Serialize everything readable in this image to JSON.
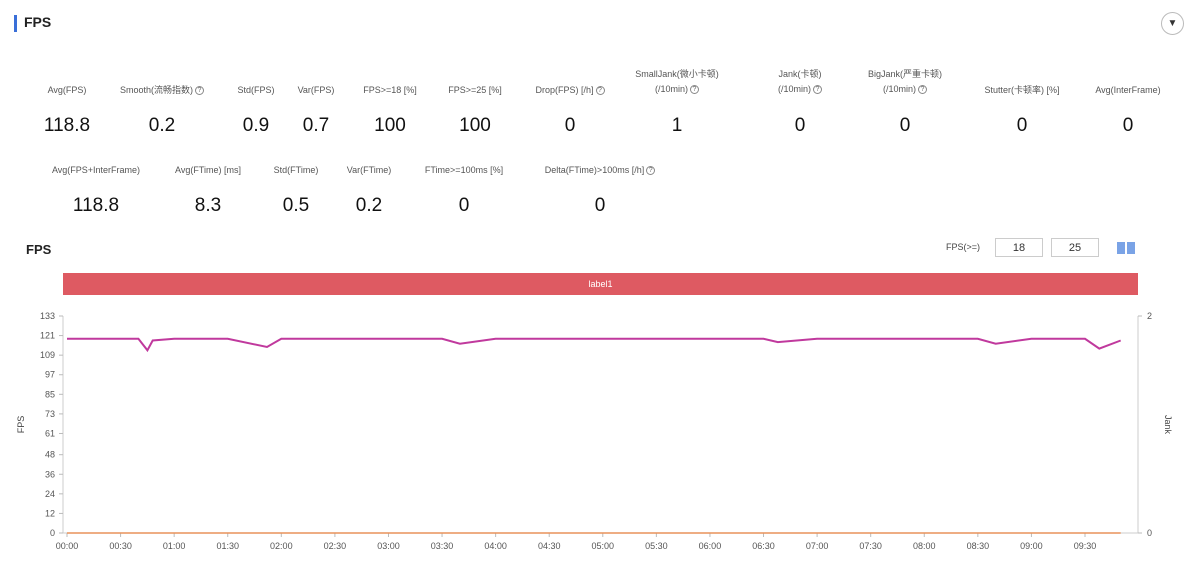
{
  "panel": {
    "title": "FPS",
    "collapse_icon": "chevron-down-icon"
  },
  "metrics_row1": [
    {
      "label": "Avg(FPS)",
      "help": false,
      "value": "118.8"
    },
    {
      "label": "Smooth(流畅指数)",
      "help": true,
      "value": "0.2"
    },
    {
      "label": "Std(FPS)",
      "help": false,
      "value": "0.9"
    },
    {
      "label": "Var(FPS)",
      "help": false,
      "value": "0.7"
    },
    {
      "label": "FPS>=18 [%]",
      "help": false,
      "value": "100"
    },
    {
      "label": "FPS>=25 [%]",
      "help": false,
      "value": "100"
    },
    {
      "label": "Drop(FPS) [/h]",
      "help": true,
      "value": "0"
    },
    {
      "label": "SmallJank(微小卡顿)",
      "label2": "(/10min)",
      "help": true,
      "value": "1"
    },
    {
      "label": "Jank(卡顿)",
      "label2": "(/10min)",
      "help": true,
      "value": "0"
    },
    {
      "label": "BigJank(严重卡顿)",
      "label2": "(/10min)",
      "help": true,
      "value": "0"
    },
    {
      "label": "Stutter(卡顿率) [%]",
      "help": false,
      "value": "0"
    },
    {
      "label": "Avg(InterFrame)",
      "help": false,
      "value": "0"
    }
  ],
  "metrics_row2": [
    {
      "label": "Avg(FPS+InterFrame)",
      "help": false,
      "value": "118.8"
    },
    {
      "label": "Avg(FTime) [ms]",
      "help": false,
      "value": "8.3"
    },
    {
      "label": "Std(FTime)",
      "help": false,
      "value": "0.5"
    },
    {
      "label": "Var(FTime)",
      "help": false,
      "value": "0.2"
    },
    {
      "label": "FTime>=100ms [%]",
      "help": false,
      "value": "0"
    },
    {
      "label": "Delta(FTime)>100ms [/h]",
      "help": true,
      "value": "0"
    }
  ],
  "chart_section": {
    "title": "FPS",
    "threshold_label": "FPS(>=)",
    "threshold_1": "18",
    "threshold_2": "25",
    "band_label": "label1",
    "colors": {
      "fps_line": "#c0399d",
      "jank_line": "#e8925a",
      "band": "#de5a62"
    }
  },
  "chart_data": {
    "type": "line",
    "ylabel": "FPS",
    "y2label": "Jank",
    "y_ticks": [
      0,
      12,
      24,
      36,
      48,
      61,
      73,
      85,
      97,
      109,
      121,
      133
    ],
    "ylim": [
      0,
      133
    ],
    "y2_ticks": [
      0,
      2
    ],
    "y2lim": [
      0,
      2
    ],
    "x_ticks": [
      "00:00",
      "00:30",
      "01:00",
      "01:30",
      "02:00",
      "02:30",
      "03:00",
      "03:30",
      "04:00",
      "04:30",
      "05:00",
      "05:30",
      "06:00",
      "06:30",
      "07:00",
      "07:30",
      "08:00",
      "08:30",
      "09:00",
      "09:30"
    ],
    "series": [
      {
        "name": "FPS",
        "x": [
          "00:00",
          "00:20",
          "00:40",
          "00:45",
          "00:48",
          "01:00",
          "01:30",
          "01:52",
          "02:00",
          "02:30",
          "03:00",
          "03:30",
          "03:40",
          "04:00",
          "04:30",
          "05:00",
          "05:30",
          "06:00",
          "06:30",
          "06:38",
          "07:00",
          "07:30",
          "08:00",
          "08:30",
          "08:40",
          "09:00",
          "09:30",
          "09:38",
          "09:50"
        ],
        "y": [
          119,
          119,
          119,
          112,
          118,
          119,
          119,
          114,
          119,
          119,
          119,
          119,
          116,
          119,
          119,
          119,
          119,
          119,
          119,
          117,
          119,
          119,
          119,
          119,
          116,
          119,
          119,
          113,
          118
        ]
      },
      {
        "name": "Jank",
        "x": [
          "00:00",
          "09:50"
        ],
        "y": [
          0,
          0
        ]
      }
    ]
  }
}
